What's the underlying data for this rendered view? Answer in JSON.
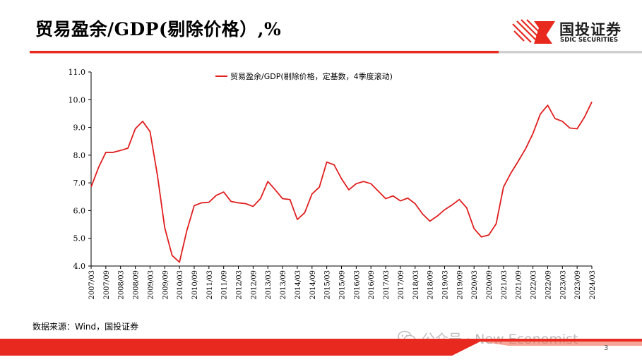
{
  "header": {
    "title": "贸易盈余/GDP(剔除价格）,%",
    "logo": {
      "name": "国投证券",
      "name_en": "SDIC SECURITIES"
    }
  },
  "footer": {
    "source": "数据来源：Wind，国投证券",
    "watermark": "公众号 · New Economist",
    "page_number": "3"
  },
  "colors": {
    "accent": "#e8291f",
    "line": "#e01e1e",
    "axis": "#000000"
  },
  "chart_data": {
    "type": "line",
    "legend": "top-center",
    "grid": false,
    "ylim": [
      4.0,
      11.0
    ],
    "y_ticks": [
      "4.0",
      "5.0",
      "6.0",
      "7.0",
      "8.0",
      "9.0",
      "10.0",
      "11.0"
    ],
    "x_tick_labels": [
      "2007/03",
      "2007/09",
      "2008/03",
      "2008/09",
      "2009/03",
      "2009/09",
      "2010/03",
      "2010/09",
      "2011/03",
      "2011/09",
      "2012/03",
      "2012/09",
      "2013/03",
      "2013/09",
      "2014/03",
      "2014/09",
      "2015/03",
      "2015/09",
      "2016/03",
      "2016/09",
      "2017/03",
      "2017/09",
      "2018/03",
      "2018/09",
      "2019/03",
      "2019/09",
      "2020/03",
      "2020/09",
      "2021/03",
      "2021/09",
      "2022/03",
      "2022/09",
      "2023/03",
      "2023/09",
      "2024/03"
    ],
    "x": [
      "2007/03",
      "2007/06",
      "2007/09",
      "2007/12",
      "2008/03",
      "2008/06",
      "2008/09",
      "2008/12",
      "2009/03",
      "2009/06",
      "2009/09",
      "2009/12",
      "2010/03",
      "2010/06",
      "2010/09",
      "2010/12",
      "2011/03",
      "2011/06",
      "2011/09",
      "2011/12",
      "2012/03",
      "2012/06",
      "2012/09",
      "2012/12",
      "2013/03",
      "2013/06",
      "2013/09",
      "2013/12",
      "2014/03",
      "2014/06",
      "2014/09",
      "2014/12",
      "2015/03",
      "2015/06",
      "2015/09",
      "2015/12",
      "2016/03",
      "2016/06",
      "2016/09",
      "2016/12",
      "2017/03",
      "2017/06",
      "2017/09",
      "2017/12",
      "2018/03",
      "2018/06",
      "2018/09",
      "2018/12",
      "2019/03",
      "2019/06",
      "2019/09",
      "2019/12",
      "2020/03",
      "2020/06",
      "2020/09",
      "2020/12",
      "2021/03",
      "2021/06",
      "2021/09",
      "2021/12",
      "2022/03",
      "2022/06",
      "2022/09",
      "2022/12",
      "2023/03",
      "2023/06",
      "2023/09",
      "2023/12",
      "2024/03"
    ],
    "series": [
      {
        "name": "贸易盈余/GDP(剔除价格，定基数，4季度滚动)",
        "values": [
          6.85,
          7.55,
          8.1,
          8.1,
          8.17,
          8.25,
          8.95,
          9.22,
          8.85,
          7.28,
          5.38,
          4.38,
          4.14,
          5.28,
          6.18,
          6.28,
          6.3,
          6.55,
          6.67,
          6.33,
          6.28,
          6.25,
          6.15,
          6.43,
          7.05,
          6.75,
          6.43,
          6.4,
          5.68,
          5.92,
          6.6,
          6.85,
          7.75,
          7.65,
          7.15,
          6.75,
          6.97,
          7.05,
          6.97,
          6.7,
          6.43,
          6.53,
          6.35,
          6.45,
          6.25,
          5.88,
          5.62,
          5.8,
          6.03,
          6.2,
          6.4,
          6.1,
          5.35,
          5.05,
          5.12,
          5.52,
          6.85,
          7.35,
          7.78,
          8.23,
          8.78,
          9.48,
          9.8,
          9.32,
          9.22,
          8.98,
          8.95,
          9.37,
          9.92
        ]
      }
    ]
  }
}
